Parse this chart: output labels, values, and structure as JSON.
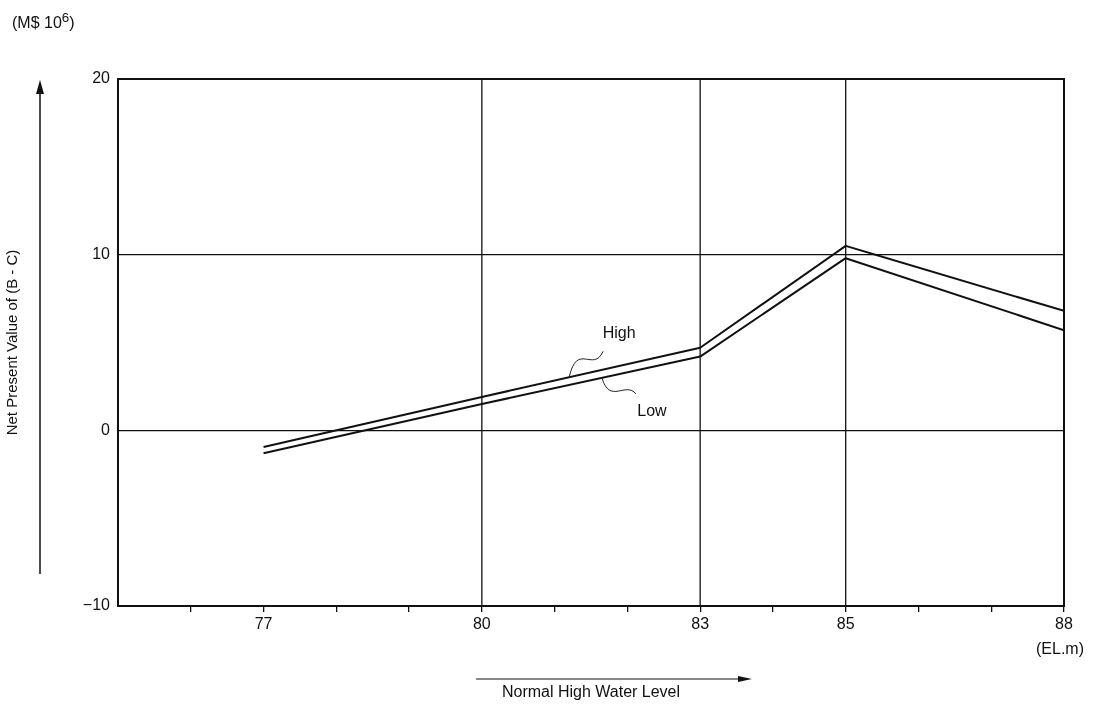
{
  "chart_data": {
    "type": "line",
    "xlabel": "Normal High Water Level",
    "ylabel": "Net Present Value of (B - C)",
    "x": [
      77,
      80,
      83,
      85,
      88
    ],
    "series": [
      {
        "name": "High",
        "color": "#111111",
        "values": [
          -0.95,
          1.9,
          4.7,
          10.5,
          6.8
        ]
      },
      {
        "name": "Low",
        "color": "#111111",
        "values": [
          -1.3,
          1.5,
          4.2,
          9.8,
          5.7
        ]
      }
    ],
    "xlim": [
      75,
      88
    ],
    "xticks": [
      {
        "value": 76,
        "label": null
      },
      77,
      {
        "value": 78,
        "label": null
      },
      {
        "value": 79,
        "label": null
      },
      80,
      {
        "value": 81,
        "label": null
      },
      {
        "value": 82,
        "label": null
      },
      83,
      {
        "value": 84,
        "label": null
      },
      85,
      {
        "value": 86,
        "label": null
      },
      {
        "value": 87,
        "label": null
      },
      88
    ],
    "ylim": [
      -10,
      20
    ],
    "yticks": [
      -10,
      0,
      10,
      20
    ],
    "grid": "y",
    "legend": false,
    "marker": "none",
    "line_style": "solid",
    "ref_lines": [
      {
        "axis": "x",
        "value": 80,
        "color": "#111111"
      },
      {
        "axis": "x",
        "value": 83,
        "color": "#111111"
      },
      {
        "axis": "x",
        "value": 85,
        "color": "#111111"
      }
    ],
    "annotations": [
      "(M$ 10$^{6}$)",
      "(EL.m)"
    ]
  }
}
